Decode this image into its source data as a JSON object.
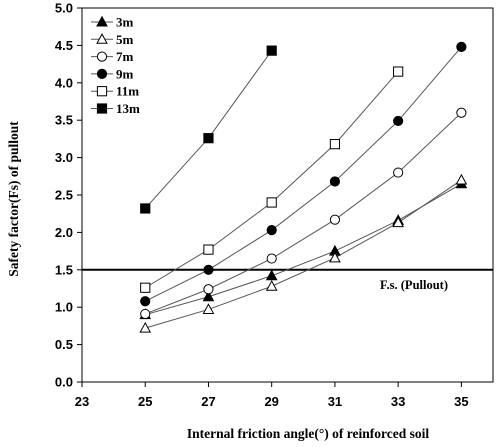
{
  "chart_data": {
    "type": "line",
    "xlabel": "Internal friction angle(°) of reinforced soil",
    "ylabel": "Safety factor(Fs) of  pullout",
    "xlim": [
      23,
      36
    ],
    "ylim": [
      0.0,
      5.0
    ],
    "xticks": [
      "23",
      "25",
      "27",
      "29",
      "31",
      "33",
      "35"
    ],
    "yticks": [
      "0.0",
      "0.5",
      "1.0",
      "1.5",
      "2.0",
      "2.5",
      "3.0",
      "3.5",
      "4.0",
      "4.5",
      "5.0"
    ],
    "legend_position": "top-left",
    "grid": false,
    "line_color": "#555555",
    "series": [
      {
        "name": "3m",
        "marker": "filled-triangle",
        "x": [
          25,
          27,
          29,
          31,
          33,
          35
        ],
        "y": [
          0.9,
          1.14,
          1.42,
          1.75,
          2.16,
          2.65
        ]
      },
      {
        "name": "5m",
        "marker": "open-triangle",
        "x": [
          25,
          27,
          29,
          31,
          33,
          35
        ],
        "y": [
          0.72,
          0.97,
          1.28,
          1.66,
          2.13,
          2.7
        ]
      },
      {
        "name": "7m",
        "marker": "open-circle",
        "x": [
          25,
          27,
          29,
          31,
          33,
          35
        ],
        "y": [
          0.91,
          1.24,
          1.65,
          2.17,
          2.8,
          3.6
        ]
      },
      {
        "name": "9m",
        "marker": "filled-circle",
        "x": [
          25,
          27,
          29,
          31,
          33,
          35
        ],
        "y": [
          1.08,
          1.5,
          2.03,
          2.68,
          3.49,
          4.48
        ]
      },
      {
        "name": "11m",
        "marker": "open-square",
        "x": [
          25,
          27,
          29,
          31,
          33
        ],
        "y": [
          1.26,
          1.77,
          2.4,
          3.18,
          4.15
        ]
      },
      {
        "name": "13m",
        "marker": "filled-square",
        "x": [
          25,
          27,
          29
        ],
        "y": [
          2.32,
          3.26,
          4.43
        ]
      }
    ],
    "reference_line": {
      "y": 1.5,
      "label": "F.s. (Pullout)"
    }
  }
}
